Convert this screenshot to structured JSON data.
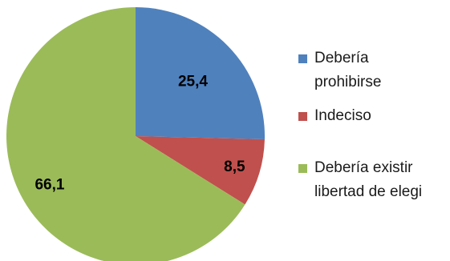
{
  "chart_data": {
    "type": "pie",
    "slices": [
      {
        "label": "Debería\nprohibirse",
        "value": 25.4,
        "value_text": "25,4",
        "color": "#4F81BD"
      },
      {
        "label": "Indeciso",
        "value": 8.5,
        "value_text": "8,5",
        "color": "#C0504D"
      },
      {
        "label": "Debería existir\nlibertad de elegi",
        "value": 66.1,
        "value_text": "66,1",
        "color": "#9BBB59"
      }
    ],
    "legend_position": "right",
    "start_angle": "12 o'clock",
    "direction": "clockwise"
  }
}
